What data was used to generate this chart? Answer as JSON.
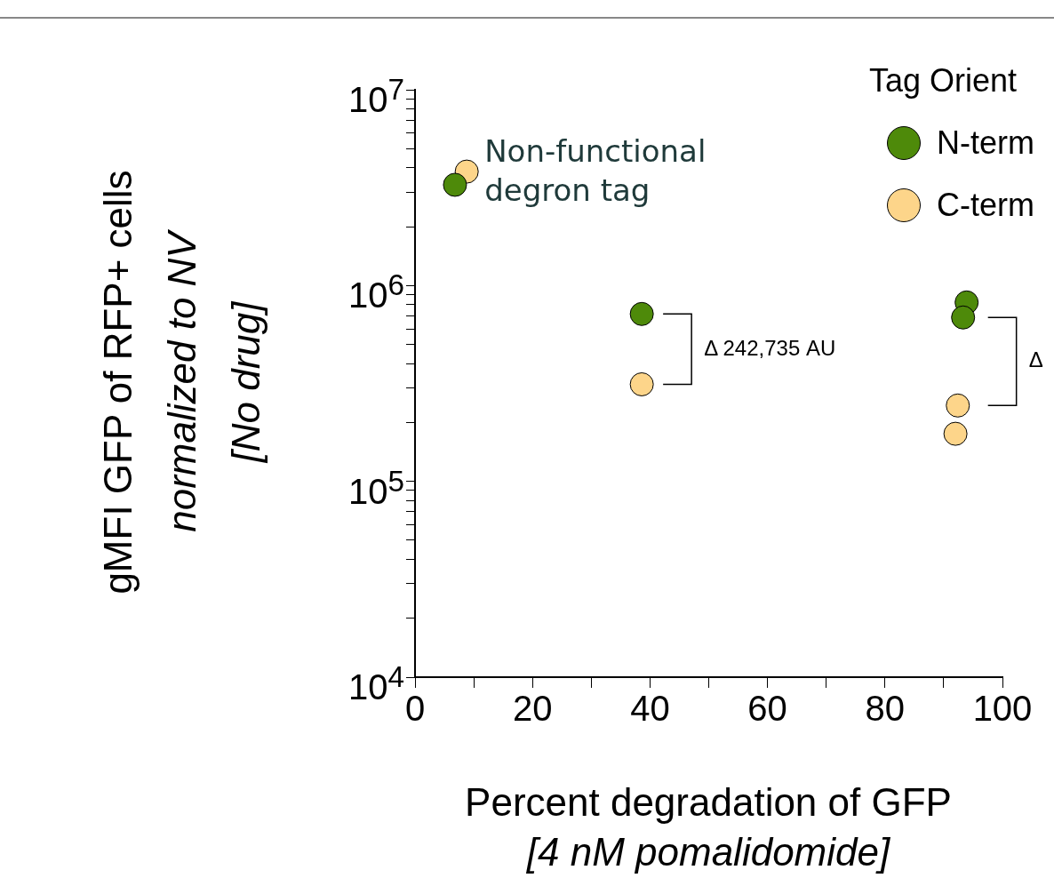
{
  "chart_data": {
    "type": "scatter",
    "xlabel": "Percent degradation of GFP\n[4 nM pomalidomide]",
    "ylabel": "gMFI GFP of RFP+ cells\nnormalized to NV\n[No drug]",
    "legend_title": "Tag Orient",
    "legend": "top right",
    "marker": "circle",
    "log": "y",
    "grid": false,
    "xlim": [
      0,
      100
    ],
    "xticks": [
      0,
      {
        "value": 10,
        "label": null
      },
      20,
      {
        "value": 30,
        "label": null
      },
      40,
      {
        "value": 50,
        "label": null
      },
      60,
      {
        "value": 70,
        "label": null
      },
      80,
      {
        "value": 90,
        "label": null
      },
      100
    ],
    "ylim": [
      10000,
      10000000
    ],
    "yticks": [
      {
        "value": 10000,
        "label": "10$^{4}$"
      },
      {
        "value": 20000,
        "label": null
      },
      {
        "value": 30000,
        "label": null
      },
      {
        "value": 40000,
        "label": null
      },
      {
        "value": 50000,
        "label": null
      },
      {
        "value": 60000,
        "label": null
      },
      {
        "value": 70000,
        "label": null
      },
      {
        "value": 80000,
        "label": null
      },
      {
        "value": 90000,
        "label": null
      },
      {
        "value": 100000,
        "label": "10$^{5}$"
      },
      {
        "value": 200000,
        "label": null
      },
      {
        "value": 300000,
        "label": null
      },
      {
        "value": 400000,
        "label": null
      },
      {
        "value": 500000,
        "label": null
      },
      {
        "value": 600000,
        "label": null
      },
      {
        "value": 700000,
        "label": null
      },
      {
        "value": 800000,
        "label": null
      },
      {
        "value": 900000,
        "label": null
      },
      {
        "value": 1000000,
        "label": "10$^{6}$"
      },
      {
        "value": 2000000,
        "label": null
      },
      {
        "value": 3000000,
        "label": null
      },
      {
        "value": 4000000,
        "label": null
      },
      {
        "value": 5000000,
        "label": null
      },
      {
        "value": 6000000,
        "label": null
      },
      {
        "value": 7000000,
        "label": null
      },
      {
        "value": 8000000,
        "label": null
      },
      {
        "value": 9000000,
        "label": null
      },
      {
        "value": 10000000,
        "label": "10$^{7}$"
      }
    ],
    "series": [
      {
        "name": "N-term",
        "color": "#4e8a0a",
        "x": [
          6.8,
          38.6,
          93.9,
          93.3
        ],
        "values": [
          3270000,
          716000,
          820000,
          687000
        ]
      },
      {
        "name": "C-term",
        "color": "#fdd58a",
        "x": [
          8.8,
          38.6,
          92.4,
          92.0
        ],
        "values": [
          3820000,
          313000,
          244000,
          175000
        ]
      }
    ],
    "annotations": [
      {
        "text": "Non-functional\ndegron tag",
        "x": 8.8,
        "y": 3820000
      },
      "Δ 242,735 AU",
      "Δ"
    ]
  }
}
